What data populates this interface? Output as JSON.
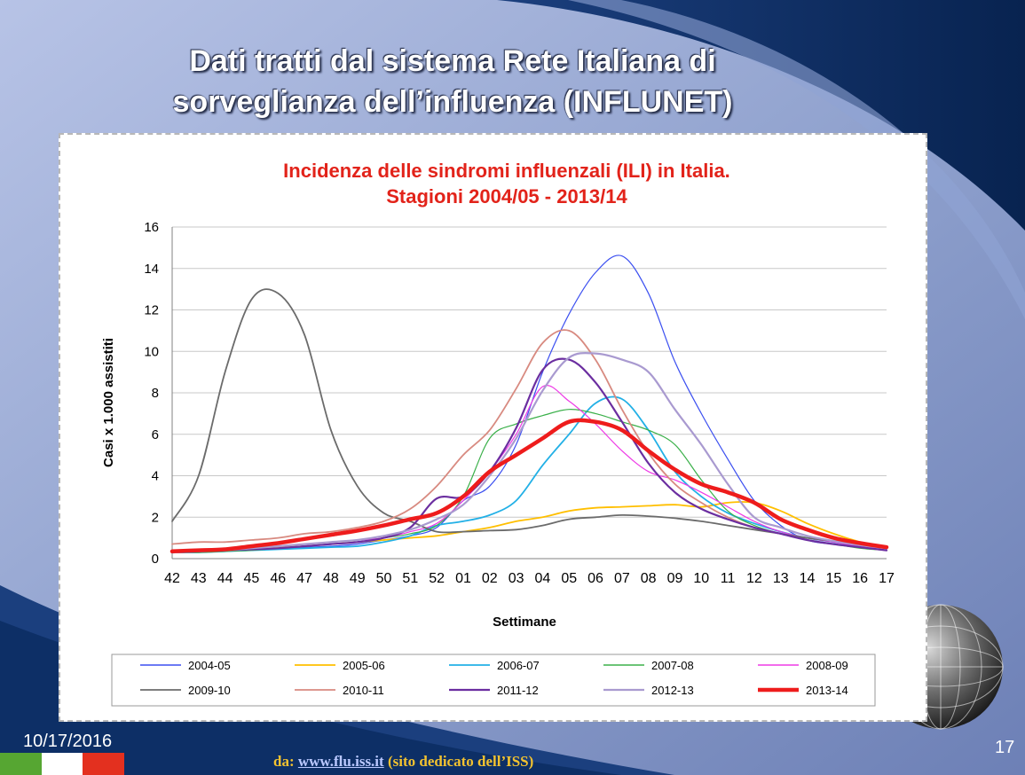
{
  "slide": {
    "title_line1": "Dati tratti dal sistema Rete Italiana di",
    "title_line2": "sorveglianza dell’influenza (INFLUNET)",
    "date": "10/17/2016",
    "page_number": "17",
    "source_prefix": "da:",
    "source_link": "www.flu.iss.it",
    "source_suffix": "(sito dedicato dell’ISS)",
    "colors": {
      "bg_light": "#aab7dc",
      "bg_dark": "#0d2f66",
      "title_text": "#ffffff",
      "source_text": "#f2c230"
    },
    "flag_colors": [
      "#56a632",
      "#ffffff",
      "#e3301f"
    ],
    "icons": [
      "globe-icon",
      "italian-flag-icon"
    ]
  },
  "chart_data": {
    "type": "line",
    "title_line1": "Incidenza delle sindromi influenzali (ILI) in Italia.",
    "title_line2": "Stagioni 2004/05 - 2013/14",
    "title_color": "#e2231a",
    "xlabel": "Settimane",
    "ylabel": "Casi x 1.000 assistiti",
    "ylim": [
      0,
      16
    ],
    "yticks": [
      "0",
      "2",
      "4",
      "6",
      "8",
      "10",
      "12",
      "14",
      "16"
    ],
    "grid": true,
    "legend_position": "bottom",
    "categories": [
      "42",
      "43",
      "44",
      "45",
      "46",
      "47",
      "48",
      "49",
      "50",
      "51",
      "52",
      "01",
      "02",
      "03",
      "04",
      "05",
      "06",
      "07",
      "08",
      "09",
      "10",
      "11",
      "12",
      "13",
      "14",
      "15",
      "16",
      "17"
    ],
    "series": [
      {
        "name": "2004-05",
        "color": "#3b4ff0",
        "width": 1.2,
        "values": [
          0.3,
          0.3,
          0.35,
          0.4,
          0.5,
          0.55,
          0.6,
          0.7,
          0.9,
          1.1,
          1.5,
          2.8,
          3.5,
          5.5,
          9.0,
          11.8,
          13.8,
          14.6,
          12.8,
          9.5,
          7.0,
          4.8,
          2.8,
          1.6,
          0.9,
          0.7,
          0.6,
          0.5
        ]
      },
      {
        "name": "2005-06",
        "color": "#ffbf00",
        "width": 1.8,
        "values": [
          0.3,
          0.35,
          0.4,
          0.5,
          0.55,
          0.6,
          0.7,
          0.8,
          0.9,
          1.0,
          1.1,
          1.3,
          1.5,
          1.8,
          2.0,
          2.3,
          2.45,
          2.5,
          2.55,
          2.6,
          2.5,
          2.7,
          2.7,
          2.3,
          1.7,
          1.2,
          0.8,
          0.5
        ]
      },
      {
        "name": "2006-07",
        "color": "#22b0e6",
        "width": 1.8,
        "values": [
          0.3,
          0.3,
          0.35,
          0.4,
          0.45,
          0.5,
          0.55,
          0.6,
          0.8,
          1.1,
          1.6,
          1.8,
          2.1,
          2.8,
          4.5,
          6.0,
          7.5,
          7.7,
          6.2,
          4.2,
          3.0,
          2.2,
          1.7,
          1.3,
          1.0,
          0.8,
          0.6,
          0.4
        ]
      },
      {
        "name": "2007-08",
        "color": "#3bb04a",
        "width": 1.2,
        "values": [
          0.3,
          0.3,
          0.35,
          0.4,
          0.5,
          0.6,
          0.7,
          0.8,
          1.0,
          1.2,
          1.6,
          3.0,
          5.8,
          6.5,
          6.9,
          7.2,
          7.0,
          6.6,
          6.2,
          5.5,
          3.8,
          2.3,
          1.6,
          1.2,
          0.9,
          0.7,
          0.5,
          0.4
        ]
      },
      {
        "name": "2008-09",
        "color": "#ee3ae6",
        "width": 1.2,
        "values": [
          0.4,
          0.45,
          0.5,
          0.55,
          0.6,
          0.7,
          0.8,
          0.9,
          1.0,
          1.3,
          1.7,
          2.8,
          4.2,
          6.0,
          8.3,
          7.6,
          6.5,
          5.2,
          4.2,
          3.8,
          3.2,
          2.5,
          1.8,
          1.3,
          1.0,
          0.8,
          0.6,
          0.5
        ]
      },
      {
        "name": "2009-10",
        "color": "#6b6b6b",
        "width": 1.8,
        "values": [
          1.8,
          4.0,
          9.0,
          12.5,
          12.8,
          10.8,
          6.2,
          3.5,
          2.2,
          1.8,
          1.3,
          1.3,
          1.35,
          1.4,
          1.6,
          1.9,
          2.0,
          2.1,
          2.05,
          1.95,
          1.8,
          1.6,
          1.4,
          1.2,
          1.0,
          0.85,
          0.7,
          0.55
        ]
      },
      {
        "name": "2010-11",
        "color": "#d88a80",
        "width": 1.8,
        "values": [
          0.7,
          0.8,
          0.8,
          0.9,
          1.0,
          1.2,
          1.3,
          1.5,
          1.8,
          2.4,
          3.5,
          5.0,
          6.2,
          8.2,
          10.4,
          11.0,
          9.6,
          7.2,
          5.1,
          3.6,
          2.7,
          2.0,
          1.5,
          1.2,
          0.9,
          0.7,
          0.55,
          0.4
        ]
      },
      {
        "name": "2011-12",
        "color": "#6b2ea0",
        "width": 2.2,
        "values": [
          0.3,
          0.35,
          0.4,
          0.45,
          0.5,
          0.6,
          0.7,
          0.8,
          1.0,
          1.5,
          2.9,
          3.0,
          4.2,
          6.3,
          9.1,
          9.6,
          8.5,
          6.6,
          4.6,
          3.2,
          2.4,
          1.9,
          1.5,
          1.2,
          0.9,
          0.7,
          0.55,
          0.4
        ]
      },
      {
        "name": "2012-13",
        "color": "#a99ad0",
        "width": 2.2,
        "values": [
          0.3,
          0.35,
          0.4,
          0.5,
          0.6,
          0.7,
          0.8,
          0.9,
          1.1,
          1.4,
          1.9,
          2.6,
          4.0,
          5.8,
          8.1,
          9.7,
          9.9,
          9.6,
          9.0,
          7.2,
          5.5,
          3.6,
          2.0,
          1.5,
          1.1,
          0.85,
          0.65,
          0.5
        ]
      },
      {
        "name": "2013-14",
        "color": "#ee1c1c",
        "width": 4.5,
        "values": [
          0.35,
          0.4,
          0.45,
          0.6,
          0.75,
          0.95,
          1.15,
          1.35,
          1.6,
          1.9,
          2.2,
          3.0,
          4.2,
          5.0,
          5.8,
          6.6,
          6.6,
          6.2,
          5.2,
          4.3,
          3.6,
          3.2,
          2.7,
          1.9,
          1.4,
          1.0,
          0.75,
          0.55
        ]
      }
    ]
  }
}
